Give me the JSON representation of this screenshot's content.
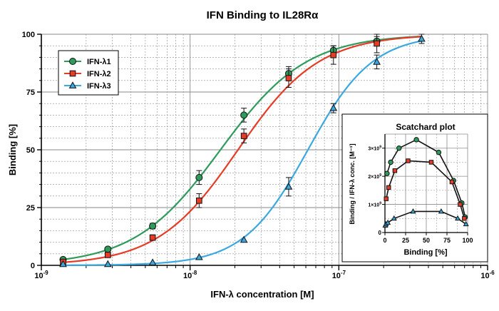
{
  "colors": {
    "series": [
      "#2e9b5b",
      "#e63b26",
      "#3ba8e0"
    ],
    "grid": "#8a8a8a",
    "axis": "#000000",
    "inset_line": "#111111"
  },
  "chart_data": [
    {
      "id": "main",
      "type": "line",
      "title": "IFN Binding to IL28Rα",
      "xlabel": "IFN-λ concentration [M]",
      "ylabel": "Binding [%]",
      "xscale": "log",
      "xlim": [
        1e-09,
        1e-06
      ],
      "ylim": [
        0,
        100
      ],
      "x_tick_labels": [
        {
          "value": 1e-09,
          "base": "10",
          "exp": "-9"
        },
        {
          "value": 1e-08,
          "base": "10",
          "exp": "-8"
        },
        {
          "value": 1e-07,
          "base": "10",
          "exp": "-7"
        },
        {
          "value": 1e-06,
          "base": "10",
          "exp": "-6"
        }
      ],
      "y_ticks": [
        0,
        25,
        50,
        75,
        100
      ],
      "grid": true,
      "legend_position": "top-left",
      "x": [
        1.4e-09,
        2.8e-09,
        5.6e-09,
        1.15e-08,
        2.3e-08,
        4.6e-08,
        9.2e-08,
        1.8e-07,
        3.6e-07
      ],
      "series": [
        {
          "name": "IFN-λ1",
          "marker": "circle",
          "values": [
            2.5,
            7,
            17,
            38,
            65,
            83,
            93,
            97,
            null
          ],
          "errors": [
            0.8,
            1,
            1.2,
            3,
            3,
            3,
            2,
            2,
            null
          ],
          "fit": {
            "ec50": 1.6e-08,
            "hill": 1.5
          }
        },
        {
          "name": "IFN-λ2",
          "marker": "square",
          "values": [
            1.5,
            4.5,
            12,
            28,
            56,
            81,
            91,
            96,
            null
          ],
          "errors": [
            0.6,
            0.8,
            1.2,
            3,
            3,
            4,
            4,
            4,
            null
          ],
          "fit": {
            "ec50": 2.1e-08,
            "hill": 1.6
          }
        },
        {
          "name": "IFN-λ3",
          "marker": "triangle",
          "values": [
            0.5,
            0.5,
            1.2,
            3.5,
            11,
            34,
            68,
            88,
            98
          ],
          "errors": [
            0.2,
            0.2,
            0.3,
            0.5,
            0.8,
            4,
            2,
            3,
            2
          ],
          "fit": {
            "ec50": 6.2e-08,
            "hill": 2.0
          }
        }
      ]
    },
    {
      "id": "inset",
      "type": "line",
      "title": "Scatchard plot",
      "xlabel": "Binding [%]",
      "ylabel": "Binding / IFN-λ conc. [M⁻¹]",
      "xlim": [
        0,
        100
      ],
      "ylim": [
        0,
        3500000000.0
      ],
      "x_ticks": [
        0,
        25,
        50,
        75,
        100
      ],
      "y_tick_labels": [
        {
          "value": 1000000000.0,
          "base": "1×10",
          "exp": "9"
        },
        {
          "value": 2000000000.0,
          "base": "2×10",
          "exp": "9"
        },
        {
          "value": 3000000000.0,
          "base": "3×10",
          "exp": "9"
        }
      ],
      "grid": true,
      "series": [
        {
          "name": "IFN-λ1",
          "marker": "circle",
          "x": [
            2.5,
            7,
            17,
            38,
            65,
            83,
            93,
            97
          ],
          "y": [
            2100000000.0,
            2500000000.0,
            3000000000.0,
            3300000000.0,
            2850000000.0,
            1850000000.0,
            1050000000.0,
            550000000.0
          ]
        },
        {
          "name": "IFN-λ2",
          "marker": "square",
          "x": [
            1.5,
            4.5,
            12,
            28,
            56,
            81,
            91,
            96
          ],
          "y": [
            1200000000.0,
            1600000000.0,
            2200000000.0,
            2550000000.0,
            2500000000.0,
            1800000000.0,
            1000000000.0,
            500000000.0
          ]
        },
        {
          "name": "IFN-λ3",
          "marker": "triangle",
          "x": [
            0.5,
            1.2,
            3.5,
            11,
            34,
            68,
            88,
            98
          ],
          "y": [
            250000000.0,
            300000000.0,
            350000000.0,
            500000000.0,
            750000000.0,
            750000000.0,
            500000000.0,
            300000000.0
          ]
        }
      ]
    }
  ]
}
